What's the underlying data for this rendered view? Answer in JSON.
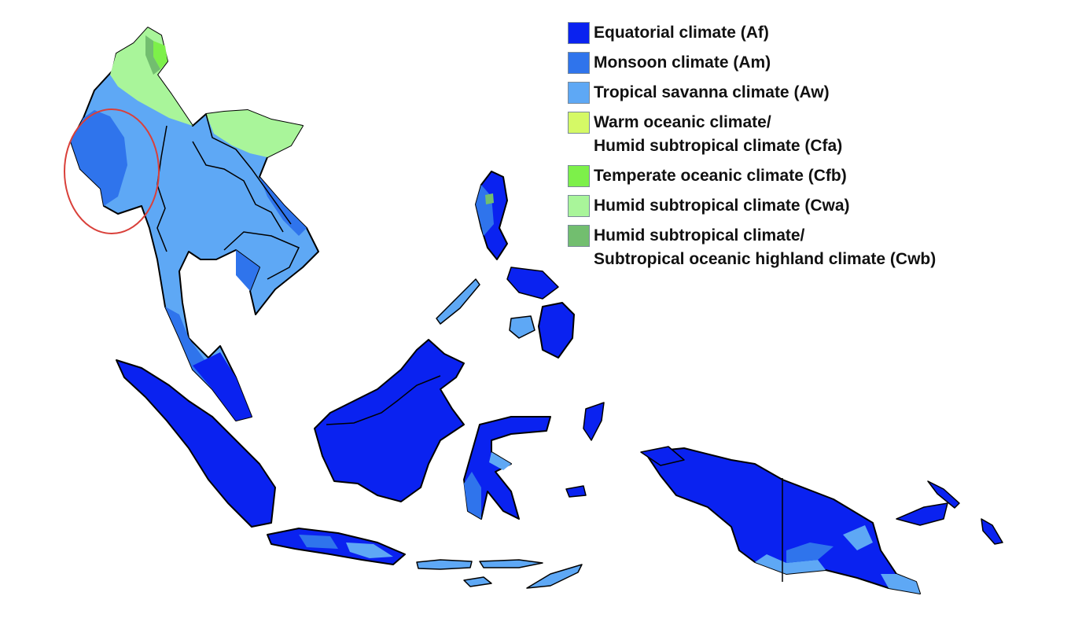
{
  "map": {
    "colors": {
      "Af": "#0a22f0",
      "Am": "#2f74ec",
      "Aw": "#5ea8f5",
      "Cfa": "#d5f966",
      "Cfb": "#7df04a",
      "Cwa": "#a9f59a",
      "Cwb": "#72be6f",
      "border": "#000000",
      "annotation": "#d9403a"
    }
  },
  "legend": {
    "items": [
      {
        "code": "Af",
        "color": "#0a22f0",
        "lines": [
          "Equatorial climate (Af)"
        ]
      },
      {
        "code": "Am",
        "color": "#2f74ec",
        "lines": [
          "Monsoon climate (Am)"
        ]
      },
      {
        "code": "Aw",
        "color": "#5ea8f5",
        "lines": [
          "Tropical savanna climate (Aw)"
        ]
      },
      {
        "code": "Cfa",
        "color": "#d5f966",
        "lines": [
          "Warm oceanic climate/",
          "Humid subtropical climate (Cfa)"
        ]
      },
      {
        "code": "Cfb",
        "color": "#7df04a",
        "lines": [
          "Temperate oceanic climate (Cfb)"
        ]
      },
      {
        "code": "Cwa",
        "color": "#a9f59a",
        "lines": [
          "Humid subtropical climate (Cwa)"
        ]
      },
      {
        "code": "Cwb",
        "color": "#72be6f",
        "lines": [
          "Humid subtropical climate/",
          "Subtropical oceanic highland climate (Cwb)"
        ]
      }
    ]
  }
}
